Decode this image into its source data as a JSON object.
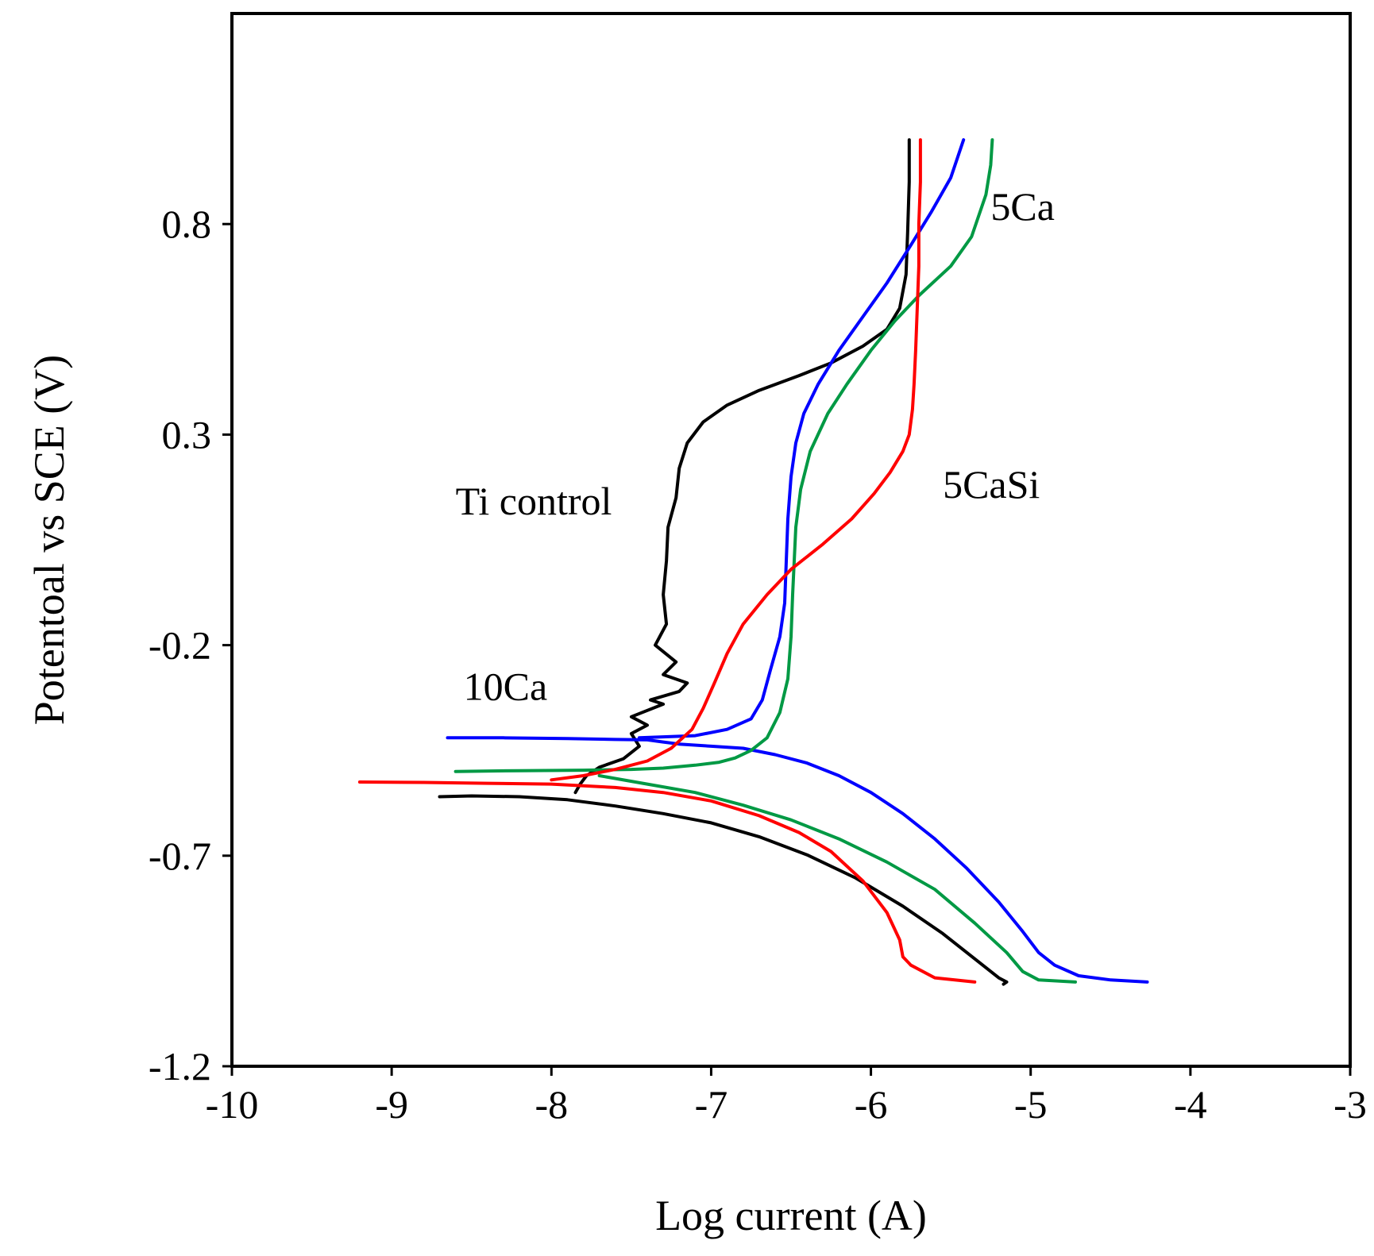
{
  "chart_data": {
    "type": "line",
    "title": "",
    "xlabel": "Log current (A)",
    "ylabel": "Potentoal vs SCE (V)",
    "xlim": [
      -10,
      -3
    ],
    "ylim": [
      -1.2,
      1.3
    ],
    "xticks": [
      -10,
      -9,
      -8,
      -7,
      -6,
      -5,
      -4,
      -3
    ],
    "xtick_labels": [
      "-10",
      "-9",
      "-8",
      "-7",
      "-6",
      "-5",
      "-4",
      "-3"
    ],
    "yticks": [
      -1.2,
      -0.7,
      -0.2,
      0.3,
      0.8
    ],
    "ytick_labels": [
      "-1.2",
      "-0.7",
      "-0.2",
      "0.3",
      "0.8"
    ],
    "grid": false,
    "annotations": [
      {
        "text": "5Ca",
        "x": -5.25,
        "y": 0.81,
        "series": "5Ca"
      },
      {
        "text": "5CaSi",
        "x": -5.55,
        "y": 0.15,
        "series": "5CaSi"
      },
      {
        "text": "Ti control",
        "x": -8.6,
        "y": 0.11,
        "series": "Ti control"
      },
      {
        "text": "10Ca",
        "x": -8.55,
        "y": -0.33,
        "series": "10Ca"
      }
    ],
    "series": [
      {
        "name": "Ti control",
        "color": "#000000",
        "points": [
          [
            -8.7,
            -0.56
          ],
          [
            -8.5,
            -0.558
          ],
          [
            -8.2,
            -0.56
          ],
          [
            -7.9,
            -0.567
          ],
          [
            -7.6,
            -0.582
          ],
          [
            -7.3,
            -0.6
          ],
          [
            -7.0,
            -0.622
          ],
          [
            -6.7,
            -0.655
          ],
          [
            -6.4,
            -0.698
          ],
          [
            -6.1,
            -0.752
          ],
          [
            -5.8,
            -0.82
          ],
          [
            -5.55,
            -0.885
          ],
          [
            -5.35,
            -0.945
          ],
          [
            -5.2,
            -0.99
          ],
          [
            -5.15,
            -1.0
          ],
          [
            -5.17,
            -1.005
          ],
          null,
          [
            -7.85,
            -0.55
          ],
          [
            -7.82,
            -0.53
          ],
          [
            -7.78,
            -0.51
          ],
          [
            -7.7,
            -0.49
          ],
          [
            -7.55,
            -0.47
          ],
          [
            -7.45,
            -0.44
          ],
          [
            -7.5,
            -0.41
          ],
          [
            -7.4,
            -0.39
          ],
          [
            -7.5,
            -0.37
          ],
          [
            -7.3,
            -0.34
          ],
          [
            -7.38,
            -0.33
          ],
          [
            -7.2,
            -0.31
          ],
          [
            -7.15,
            -0.29
          ],
          [
            -7.3,
            -0.27
          ],
          [
            -7.22,
            -0.24
          ],
          [
            -7.35,
            -0.2
          ],
          [
            -7.28,
            -0.15
          ],
          [
            -7.3,
            -0.08
          ],
          [
            -7.28,
            0.0
          ],
          [
            -7.27,
            0.08
          ],
          [
            -7.22,
            0.15
          ],
          [
            -7.2,
            0.22
          ],
          [
            -7.15,
            0.28
          ],
          [
            -7.05,
            0.33
          ],
          [
            -6.9,
            0.37
          ],
          [
            -6.7,
            0.405
          ],
          [
            -6.45,
            0.44
          ],
          [
            -6.25,
            0.47
          ],
          [
            -6.05,
            0.51
          ],
          [
            -5.9,
            0.55
          ],
          [
            -5.82,
            0.6
          ],
          [
            -5.78,
            0.68
          ],
          [
            -5.77,
            0.78
          ],
          [
            -5.76,
            0.9
          ],
          [
            -5.76,
            1.0
          ]
        ]
      },
      {
        "name": "10Ca",
        "color": "#0000ff",
        "points": [
          [
            -8.65,
            -0.42
          ],
          [
            -8.3,
            -0.42
          ],
          [
            -7.9,
            -0.422
          ],
          [
            -7.6,
            -0.424
          ],
          [
            -7.4,
            -0.425
          ],
          [
            -7.3,
            -0.43
          ],
          [
            -7.2,
            -0.435
          ],
          [
            -7.0,
            -0.44
          ],
          [
            -6.8,
            -0.445
          ],
          [
            -6.6,
            -0.46
          ],
          [
            -6.4,
            -0.48
          ],
          [
            -6.2,
            -0.51
          ],
          [
            -6.0,
            -0.55
          ],
          [
            -5.8,
            -0.6
          ],
          [
            -5.6,
            -0.66
          ],
          [
            -5.4,
            -0.73
          ],
          [
            -5.2,
            -0.81
          ],
          [
            -5.05,
            -0.88
          ],
          [
            -4.95,
            -0.93
          ],
          [
            -4.85,
            -0.96
          ],
          [
            -4.7,
            -0.985
          ],
          [
            -4.5,
            -0.995
          ],
          [
            -4.27,
            -1.0
          ],
          null,
          [
            -7.45,
            -0.42
          ],
          [
            -7.1,
            -0.415
          ],
          [
            -6.9,
            -0.4
          ],
          [
            -6.75,
            -0.375
          ],
          [
            -6.68,
            -0.33
          ],
          [
            -6.63,
            -0.26
          ],
          [
            -6.57,
            -0.18
          ],
          [
            -6.54,
            -0.1
          ],
          [
            -6.53,
            0.0
          ],
          [
            -6.52,
            0.1
          ],
          [
            -6.5,
            0.2
          ],
          [
            -6.47,
            0.28
          ],
          [
            -6.42,
            0.35
          ],
          [
            -6.33,
            0.42
          ],
          [
            -6.2,
            0.5
          ],
          [
            -6.05,
            0.58
          ],
          [
            -5.9,
            0.66
          ],
          [
            -5.75,
            0.75
          ],
          [
            -5.62,
            0.83
          ],
          [
            -5.5,
            0.91
          ],
          [
            -5.42,
            1.0
          ]
        ]
      },
      {
        "name": "5Ca",
        "color": "#009944",
        "points": [
          [
            -8.6,
            -0.5
          ],
          [
            -8.2,
            -0.498
          ],
          [
            -7.8,
            -0.497
          ],
          [
            -7.5,
            -0.495
          ],
          [
            -7.3,
            -0.492
          ],
          [
            -7.1,
            -0.485
          ],
          [
            -6.95,
            -0.478
          ],
          [
            -6.85,
            -0.468
          ],
          [
            -6.75,
            -0.45
          ],
          [
            -6.65,
            -0.42
          ],
          [
            -6.57,
            -0.36
          ],
          [
            -6.52,
            -0.28
          ],
          [
            -6.5,
            -0.18
          ],
          [
            -6.49,
            -0.08
          ],
          [
            -6.48,
            0.0
          ],
          [
            -6.47,
            0.08
          ],
          [
            -6.44,
            0.17
          ],
          [
            -6.38,
            0.26
          ],
          [
            -6.27,
            0.35
          ],
          [
            -6.15,
            0.42
          ],
          [
            -6.0,
            0.5
          ],
          [
            -5.85,
            0.57
          ],
          [
            -5.7,
            0.63
          ],
          [
            -5.5,
            0.7
          ],
          [
            -5.37,
            0.77
          ],
          [
            -5.28,
            0.87
          ],
          [
            -5.25,
            0.94
          ],
          [
            -5.24,
            1.0
          ],
          null,
          [
            -7.7,
            -0.51
          ],
          [
            -7.4,
            -0.53
          ],
          [
            -7.1,
            -0.55
          ],
          [
            -6.8,
            -0.58
          ],
          [
            -6.5,
            -0.615
          ],
          [
            -6.2,
            -0.66
          ],
          [
            -5.9,
            -0.715
          ],
          [
            -5.6,
            -0.78
          ],
          [
            -5.35,
            -0.86
          ],
          [
            -5.15,
            -0.93
          ],
          [
            -5.05,
            -0.975
          ],
          [
            -4.95,
            -0.995
          ],
          [
            -4.72,
            -1.0
          ]
        ]
      },
      {
        "name": "5CaSi",
        "color": "#ff0000",
        "points": [
          [
            -9.2,
            -0.525
          ],
          [
            -8.8,
            -0.526
          ],
          [
            -8.4,
            -0.528
          ],
          [
            -8.0,
            -0.53
          ],
          [
            -7.6,
            -0.538
          ],
          [
            -7.3,
            -0.55
          ],
          [
            -7.0,
            -0.57
          ],
          [
            -6.7,
            -0.605
          ],
          [
            -6.45,
            -0.645
          ],
          [
            -6.25,
            -0.69
          ],
          [
            -6.05,
            -0.76
          ],
          [
            -5.9,
            -0.835
          ],
          [
            -5.82,
            -0.9
          ],
          [
            -5.8,
            -0.94
          ],
          [
            -5.75,
            -0.96
          ],
          [
            -5.6,
            -0.99
          ],
          [
            -5.35,
            -1.0
          ],
          null,
          [
            -8.0,
            -0.52
          ],
          [
            -7.8,
            -0.51
          ],
          [
            -7.6,
            -0.495
          ],
          [
            -7.4,
            -0.475
          ],
          [
            -7.25,
            -0.445
          ],
          [
            -7.12,
            -0.4
          ],
          [
            -7.05,
            -0.35
          ],
          [
            -6.98,
            -0.29
          ],
          [
            -6.9,
            -0.22
          ],
          [
            -6.8,
            -0.15
          ],
          [
            -6.65,
            -0.08
          ],
          [
            -6.5,
            -0.02
          ],
          [
            -6.3,
            0.04
          ],
          [
            -6.12,
            0.1
          ],
          [
            -5.98,
            0.16
          ],
          [
            -5.88,
            0.21
          ],
          [
            -5.8,
            0.26
          ],
          [
            -5.76,
            0.3
          ],
          [
            -5.74,
            0.36
          ],
          [
            -5.73,
            0.42
          ],
          [
            -5.72,
            0.5
          ],
          [
            -5.71,
            0.6
          ],
          [
            -5.7,
            0.7
          ],
          [
            -5.7,
            0.8
          ],
          [
            -5.69,
            0.9
          ],
          [
            -5.69,
            1.0
          ]
        ]
      }
    ]
  }
}
